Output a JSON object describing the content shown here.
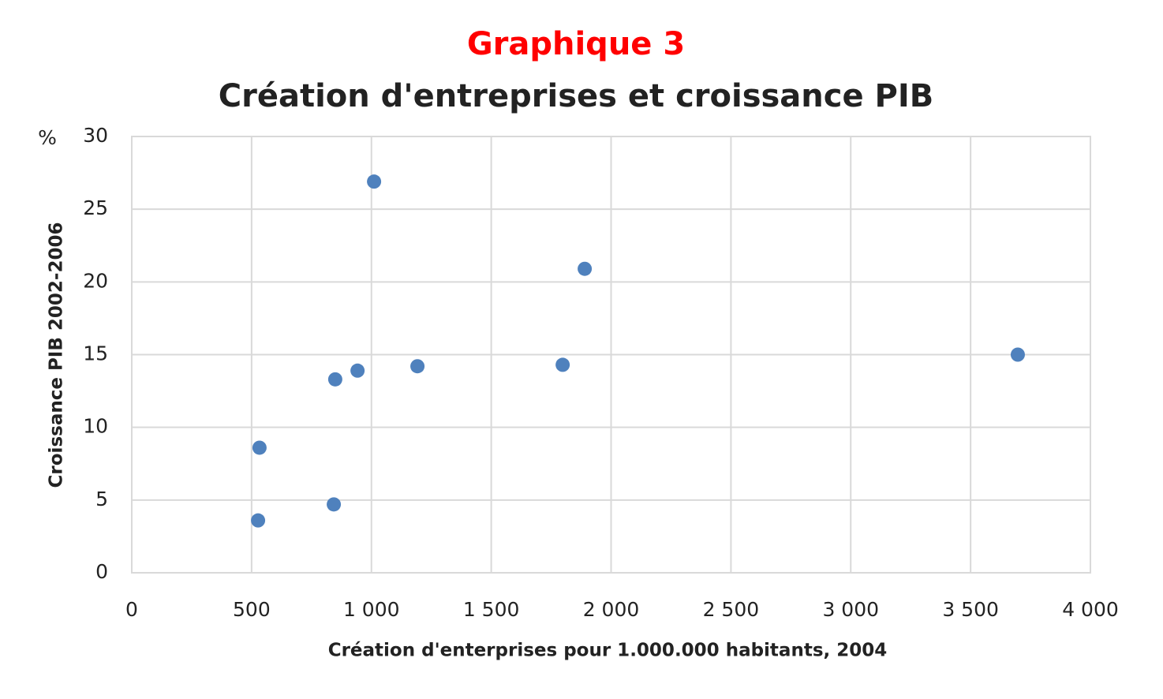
{
  "chart_data": {
    "type": "scatter",
    "title": "Graphique  3",
    "subtitle": "Création  d'entreprises  et croissance  PIB",
    "x_label": "Création d'enterprises pour 1.000.000 habitants,  2004",
    "y_label": "Croissance  PIB 2002-2006",
    "y_unit": "%",
    "x": [
      527,
      533,
      843,
      849,
      942,
      1011,
      1192,
      1798,
      1890,
      3697
    ],
    "y": [
      3.6,
      8.6,
      4.7,
      13.3,
      13.9,
      26.9,
      14.2,
      14.3,
      20.9,
      15.0
    ],
    "color": "#4f81bd",
    "title_color": "#ff0000",
    "xlim": [
      0,
      4000
    ],
    "ylim": [
      0,
      30
    ],
    "xticks": [
      0,
      500,
      {
        "value": 1000,
        "label": "1 000"
      },
      {
        "value": 1500,
        "label": "1 500"
      },
      {
        "value": 2000,
        "label": "2 000"
      },
      {
        "value": 2500,
        "label": "2 500"
      },
      {
        "value": 3000,
        "label": "3 000"
      },
      {
        "value": 3500,
        "label": "3 500"
      },
      {
        "value": 4000,
        "label": "4 000"
      }
    ],
    "yticks": [
      0,
      5,
      10,
      15,
      20,
      25,
      30
    ],
    "grid": true
  }
}
